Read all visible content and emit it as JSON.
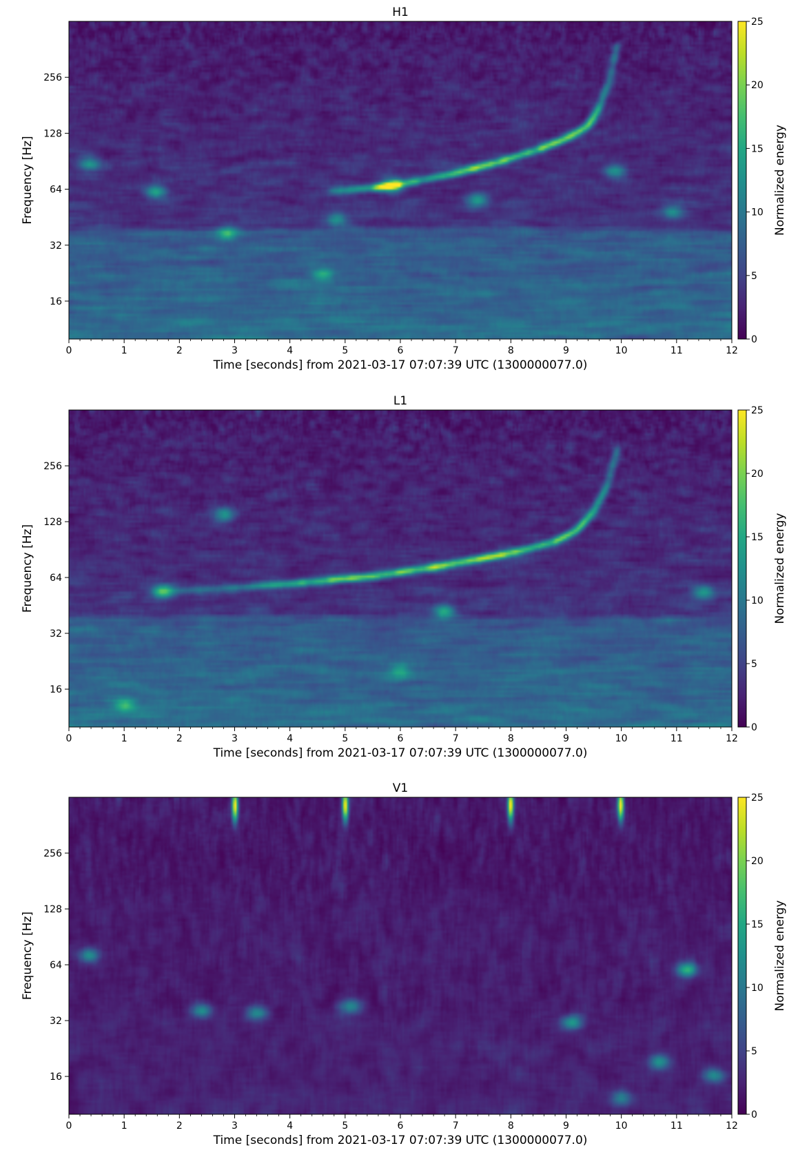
{
  "chart_data": [
    {
      "type": "heatmap",
      "title": "H1",
      "xlabel": "Time [seconds] from 2021-03-17 07:07:39 UTC (1300000077.0)",
      "ylabel": "Frequency [Hz]",
      "xlim": [
        0,
        12
      ],
      "ylim": [
        10,
        512
      ],
      "yscale": "log2",
      "xticks": [
        "0",
        "1",
        "2",
        "3",
        "4",
        "5",
        "6",
        "7",
        "8",
        "9",
        "10",
        "11",
        "12"
      ],
      "yticks": [
        "16",
        "32",
        "64",
        "128",
        "256"
      ],
      "colorbar": {
        "label": "Normalized energy",
        "range": [
          0,
          25
        ],
        "ticks": [
          "0",
          "5",
          "10",
          "15",
          "20",
          "25"
        ],
        "colormap": "viridis"
      },
      "signal": {
        "description_track": [
          {
            "t": 4.7,
            "f": 62
          },
          {
            "t": 5.5,
            "f": 65
          },
          {
            "t": 6.0,
            "f": 68
          },
          {
            "t": 7.0,
            "f": 78
          },
          {
            "t": 7.8,
            "f": 90
          },
          {
            "t": 8.5,
            "f": 105
          },
          {
            "t": 9.0,
            "f": 120
          },
          {
            "t": 9.4,
            "f": 140
          },
          {
            "t": 9.6,
            "f": 175
          },
          {
            "t": 9.8,
            "f": 250
          },
          {
            "t": 9.95,
            "f": 400
          }
        ],
        "peak_energy": 17
      },
      "blobs": [
        {
          "t": 0.35,
          "f": 88,
          "e": 9
        },
        {
          "t": 1.55,
          "f": 62,
          "e": 10
        },
        {
          "t": 2.85,
          "f": 37,
          "e": 10
        },
        {
          "t": 4.85,
          "f": 44,
          "e": 9
        },
        {
          "t": 5.85,
          "f": 67,
          "e": 11
        },
        {
          "t": 7.4,
          "f": 56,
          "e": 10
        },
        {
          "t": 9.9,
          "f": 80,
          "e": 9
        },
        {
          "t": 10.95,
          "f": 48,
          "e": 8
        },
        {
          "t": 4.6,
          "f": 22,
          "e": 7
        }
      ]
    },
    {
      "type": "heatmap",
      "title": "L1",
      "xlabel": "Time [seconds] from 2021-03-17 07:07:39 UTC (1300000077.0)",
      "ylabel": "Frequency [Hz]",
      "xlim": [
        0,
        12
      ],
      "ylim": [
        10,
        512
      ],
      "yscale": "log2",
      "xticks": [
        "0",
        "1",
        "2",
        "3",
        "4",
        "5",
        "6",
        "7",
        "8",
        "9",
        "10",
        "11",
        "12"
      ],
      "yticks": [
        "16",
        "32",
        "64",
        "128",
        "256"
      ],
      "colorbar": {
        "label": "Normalized energy",
        "range": [
          0,
          25
        ],
        "ticks": [
          "0",
          "5",
          "10",
          "15",
          "20",
          "25"
        ],
        "colormap": "viridis"
      },
      "signal": {
        "description_track": [
          {
            "t": 1.5,
            "f": 53
          },
          {
            "t": 3.3,
            "f": 57
          },
          {
            "t": 4.5,
            "f": 61
          },
          {
            "t": 5.5,
            "f": 65
          },
          {
            "t": 6.5,
            "f": 72
          },
          {
            "t": 7.4,
            "f": 80
          },
          {
            "t": 8.1,
            "f": 88
          },
          {
            "t": 8.8,
            "f": 100
          },
          {
            "t": 9.2,
            "f": 115
          },
          {
            "t": 9.5,
            "f": 145
          },
          {
            "t": 9.75,
            "f": 200
          },
          {
            "t": 9.95,
            "f": 330
          }
        ],
        "peak_energy": 21
      },
      "blobs": [
        {
          "t": 1.7,
          "f": 54,
          "e": 12
        },
        {
          "t": 2.8,
          "f": 140,
          "e": 10
        },
        {
          "t": 6.8,
          "f": 42,
          "e": 12
        },
        {
          "t": 11.5,
          "f": 53,
          "e": 10
        },
        {
          "t": 1.0,
          "f": 13,
          "e": 9
        },
        {
          "t": 6.0,
          "f": 20,
          "e": 7
        }
      ]
    },
    {
      "type": "heatmap",
      "title": "V1",
      "xlabel": "Time [seconds] from 2021-03-17 07:07:39 UTC (1300000077.0)",
      "ylabel": "Frequency [Hz]",
      "xlim": [
        0,
        12
      ],
      "ylim": [
        10,
        512
      ],
      "yscale": "log2",
      "xticks": [
        "0",
        "1",
        "2",
        "3",
        "4",
        "5",
        "6",
        "7",
        "8",
        "9",
        "10",
        "11",
        "12"
      ],
      "yticks": [
        "16",
        "32",
        "64",
        "128",
        "256"
      ],
      "colorbar": {
        "label": "Normalized energy",
        "range": [
          0,
          25
        ],
        "ticks": [
          "0",
          "5",
          "10",
          "15",
          "20",
          "25"
        ],
        "colormap": "viridis"
      },
      "glitches": [
        {
          "t": 3.0,
          "f": 470,
          "e": 24
        },
        {
          "t": 5.0,
          "f": 470,
          "e": 24
        },
        {
          "t": 8.0,
          "f": 470,
          "e": 24
        },
        {
          "t": 10.0,
          "f": 470,
          "e": 24
        }
      ],
      "blobs": [
        {
          "t": 11.2,
          "f": 60,
          "e": 14
        },
        {
          "t": 0.35,
          "f": 72,
          "e": 10
        },
        {
          "t": 2.4,
          "f": 36,
          "e": 10
        },
        {
          "t": 3.4,
          "f": 35,
          "e": 10
        },
        {
          "t": 5.1,
          "f": 38,
          "e": 10
        },
        {
          "t": 9.1,
          "f": 31,
          "e": 11
        },
        {
          "t": 10.7,
          "f": 19,
          "e": 10
        },
        {
          "t": 11.7,
          "f": 16,
          "e": 10
        },
        {
          "t": 10.0,
          "f": 12,
          "e": 8
        }
      ]
    }
  ]
}
